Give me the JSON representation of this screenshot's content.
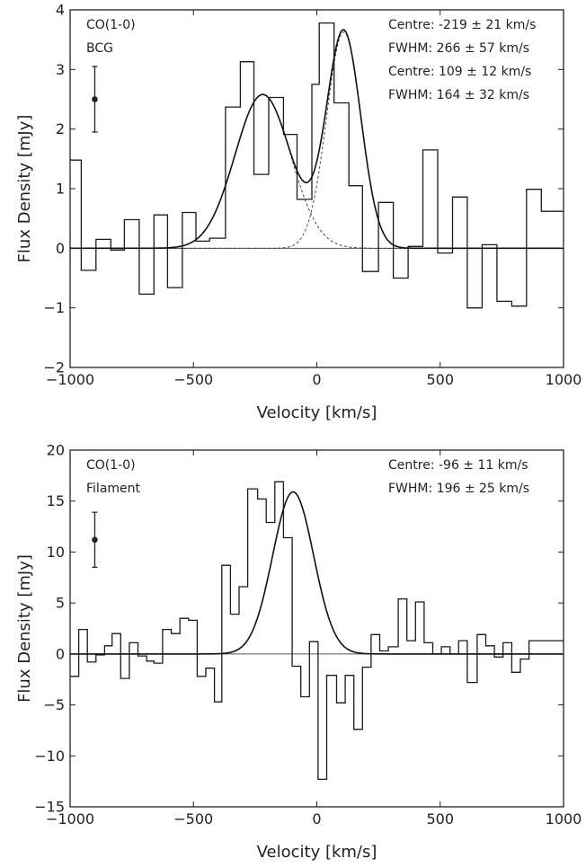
{
  "chart_data": [
    {
      "type": "line",
      "xlabel": "Velocity [km/s]",
      "ylabel": "Flux Density [mJy]",
      "xlim": [
        -1000,
        1000
      ],
      "ylim": [
        -2,
        4
      ],
      "xticks": [
        -1000,
        -500,
        0,
        500,
        1000
      ],
      "xtick_labels": [
        "−1000",
        "−500",
        "0",
        "500",
        "1000"
      ],
      "yticks": [
        -2,
        -1,
        0,
        1,
        2,
        3,
        4
      ],
      "ytick_labels": [
        "−2",
        "−1",
        "0",
        "1",
        "2",
        "3",
        "4"
      ],
      "labels": [
        "CO(1-0)",
        "BCG"
      ],
      "fit_labels": [
        "Centre: -219 ± 21 km/s",
        "FWHM: 266 ± 57 km/s",
        "Centre: 109 ± 12 km/s",
        "FWHM: 164 ± 32 km/s"
      ],
      "spectrum": {
        "edges": [
          -1000,
          -955,
          -895,
          -835,
          -780,
          -720,
          -660,
          -605,
          -545,
          -490,
          -435,
          -370,
          -310,
          -255,
          -195,
          -135,
          -80,
          -20,
          10,
          70,
          130,
          185,
          250,
          310,
          370,
          430,
          490,
          550,
          610,
          670,
          730,
          790,
          850,
          910,
          970,
          1000
        ],
        "values": [
          1.48,
          -0.37,
          0.15,
          -0.03,
          0.48,
          -0.77,
          0.56,
          -0.66,
          0.6,
          0.12,
          0.17,
          2.37,
          3.13,
          1.24,
          2.53,
          1.91,
          0.82,
          2.75,
          3.78,
          2.44,
          1.05,
          -0.39,
          0.77,
          -0.5,
          0.03,
          1.65,
          -0.08,
          0.86,
          -1.0,
          0.06,
          -0.89,
          -0.97,
          0.99,
          0.62,
          0.62
        ]
      },
      "fits": [
        {
          "centre": -219,
          "fwhm": 266,
          "peak": 2.58
        },
        {
          "centre": 109,
          "fwhm": 164,
          "peak": 3.63
        }
      ],
      "error_bar": {
        "x": -900,
        "y": 2.5,
        "err": 0.55
      }
    },
    {
      "type": "line",
      "xlabel": "Velocity [km/s]",
      "ylabel": "Flux Density [mJy]",
      "xlim": [
        -1000,
        1000
      ],
      "ylim": [
        -15,
        20
      ],
      "xticks": [
        -1000,
        -500,
        0,
        500,
        1000
      ],
      "xtick_labels": [
        "−1000",
        "−500",
        "0",
        "500",
        "1000"
      ],
      "yticks": [
        -15,
        -10,
        -5,
        0,
        5,
        10,
        15,
        20
      ],
      "ytick_labels": [
        "−15",
        "−10",
        "−5",
        "0",
        "5",
        "10",
        "15",
        "20"
      ],
      "labels": [
        "CO(1-0)",
        "Filament"
      ],
      "fit_labels": [
        "Centre: -96 ± 11 km/s",
        "FWHM: 196 ± 25 km/s"
      ],
      "spectrum": {
        "edges": [
          -1000,
          -965,
          -930,
          -895,
          -860,
          -830,
          -795,
          -760,
          -725,
          -690,
          -660,
          -625,
          -590,
          -555,
          -520,
          -485,
          -450,
          -415,
          -385,
          -350,
          -315,
          -280,
          -240,
          -205,
          -170,
          -135,
          -100,
          -65,
          -30,
          5,
          40,
          80,
          115,
          150,
          185,
          220,
          255,
          290,
          330,
          365,
          400,
          435,
          470,
          505,
          540,
          575,
          610,
          650,
          685,
          720,
          755,
          790,
          825,
          860,
          895,
          935,
          970,
          1000
        ],
        "values": [
          -2.2,
          2.4,
          -0.8,
          -0.1,
          0.8,
          2.0,
          -2.4,
          1.1,
          -0.2,
          -0.7,
          -0.9,
          2.4,
          2.0,
          3.5,
          3.3,
          -2.2,
          -1.4,
          -4.7,
          8.7,
          3.9,
          6.6,
          16.2,
          15.2,
          12.9,
          16.9,
          11.4,
          -1.2,
          -4.2,
          1.2,
          -12.3,
          -2.1,
          -4.8,
          -2.1,
          -7.4,
          -1.3,
          1.9,
          0.3,
          0.7,
          5.4,
          1.3,
          5.1,
          1.1,
          0.0,
          0.7,
          0.0,
          1.3,
          -2.8,
          1.9,
          0.8,
          -0.3,
          1.1,
          -1.8,
          -0.5,
          1.3,
          1.3,
          1.3,
          1.3
        ]
      },
      "fits": [
        {
          "centre": -96,
          "fwhm": 196,
          "peak": 15.9
        }
      ],
      "error_bar": {
        "x": -900,
        "y": 11.2,
        "err": 2.7
      }
    }
  ]
}
